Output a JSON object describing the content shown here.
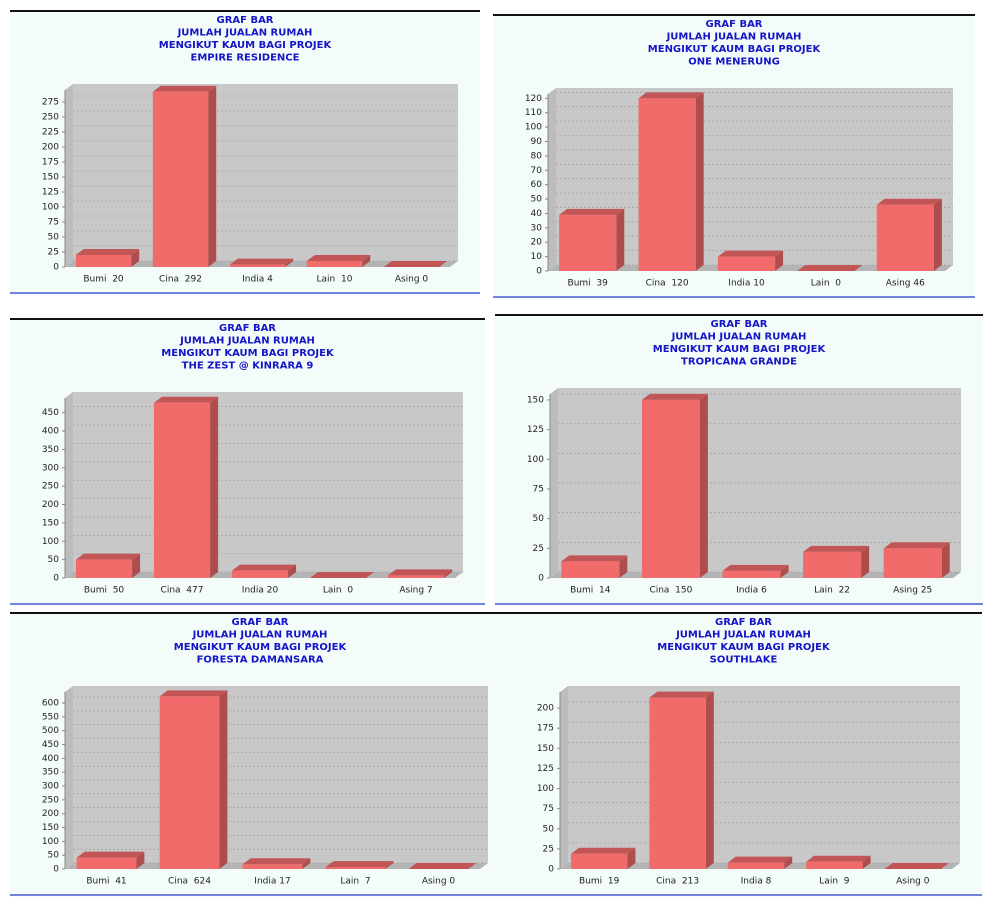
{
  "chart_data": [
    {
      "type": "bar",
      "title": [
        "GRAF BAR",
        "JUMLAH JUALAN RUMAH",
        "MENGIKUT KAUM BAGI PROJEK",
        "EMPIRE RESIDENCE"
      ],
      "categories": [
        "Bumi  20",
        "Cina  292",
        "India 4",
        "Lain  10",
        "Asing 0"
      ],
      "values": [
        20,
        292,
        4,
        10,
        0
      ],
      "color": "#f26b6b",
      "ylim": [
        0,
        295
      ],
      "yticks": [
        0,
        25,
        50,
        75,
        100,
        125,
        150,
        175,
        200,
        225,
        250,
        275
      ],
      "grid": true
    },
    {
      "type": "bar",
      "title": [
        "GRAF BAR",
        "JUMLAH JUALAN RUMAH",
        "MENGIKUT KAUM BAGI PROJEK",
        "ONE MENERUNG"
      ],
      "categories": [
        "Bumi  39",
        "Cina  120",
        "India 10",
        "Lain  0",
        "Asing 46"
      ],
      "values": [
        39,
        120,
        10,
        0,
        46
      ],
      "color": "#f26b6b",
      "ylim": [
        0,
        123
      ],
      "yticks": [
        0,
        10,
        20,
        30,
        40,
        50,
        60,
        70,
        80,
        90,
        100,
        110,
        120
      ],
      "grid": true
    },
    {
      "type": "bar",
      "title": [
        "GRAF BAR",
        "JUMLAH JUALAN RUMAH",
        "MENGIKUT KAUM BAGI PROJEK",
        "THE ZEST @ KINRARA 9"
      ],
      "categories": [
        "Bumi  50",
        "Cina  477",
        "India 20",
        "Lain  0",
        "Asing 7"
      ],
      "values": [
        50,
        477,
        20,
        0,
        7
      ],
      "color": "#f26b6b",
      "ylim": [
        0,
        490
      ],
      "yticks": [
        0,
        50,
        100,
        150,
        200,
        250,
        300,
        350,
        400,
        450
      ],
      "grid": true
    },
    {
      "type": "bar",
      "title": [
        "GRAF BAR",
        "JUMLAH JUALAN RUMAH",
        "MENGIKUT KAUM BAGI PROJEK",
        "TROPICANA GRANDE"
      ],
      "categories": [
        "Bumi  14",
        "Cina  150",
        "India 6",
        "Lain  22",
        "Asing 25"
      ],
      "values": [
        14,
        150,
        6,
        22,
        25
      ],
      "color": "#f26b6b",
      "ylim": [
        0,
        155
      ],
      "yticks": [
        0,
        25,
        50,
        75,
        100,
        125,
        150
      ],
      "grid": true
    },
    {
      "type": "bar",
      "title": [
        "GRAF BAR",
        "JUMLAH JUALAN RUMAH",
        "MENGIKUT KAUM BAGI PROJEK",
        "FORESTA DAMANSARA"
      ],
      "categories": [
        "Bumi  41",
        "Cina  624",
        "India 17",
        "Lain  7",
        "Asing 0"
      ],
      "values": [
        41,
        624,
        17,
        7,
        0
      ],
      "color": "#f26b6b",
      "ylim": [
        0,
        640
      ],
      "yticks": [
        0,
        50,
        100,
        150,
        200,
        250,
        300,
        350,
        400,
        450,
        500,
        550,
        600
      ],
      "grid": true
    },
    {
      "type": "bar",
      "title": [
        "GRAF BAR",
        "JUMLAH JUALAN RUMAH",
        "MENGIKUT KAUM BAGI PROJEK",
        "SOUTHLAKE"
      ],
      "categories": [
        "Bumi  19",
        "Cina  213",
        "India 8",
        "Lain  9",
        "Asing 0"
      ],
      "values": [
        19,
        213,
        8,
        9,
        0
      ],
      "color": "#f26b6b",
      "ylim": [
        0,
        220
      ],
      "yticks": [
        0,
        25,
        50,
        75,
        100,
        125,
        150,
        175,
        200
      ],
      "grid": true
    }
  ]
}
